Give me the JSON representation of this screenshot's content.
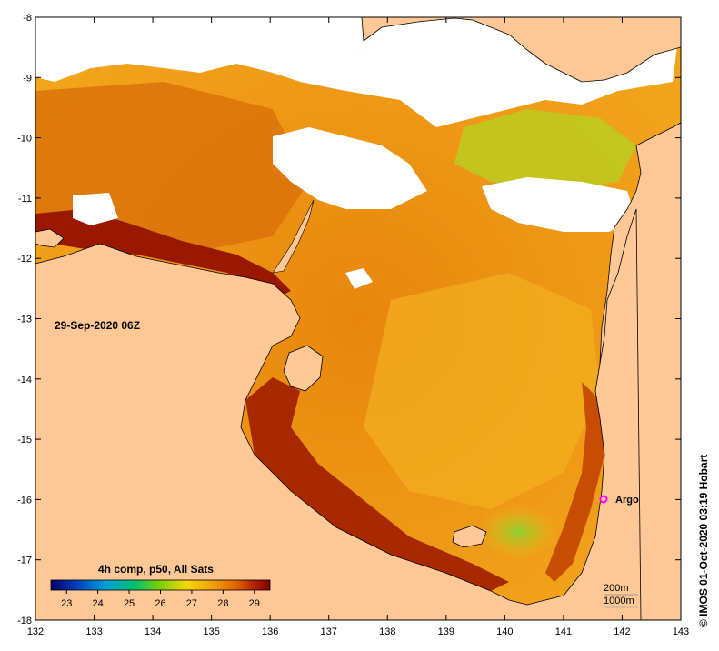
{
  "map": {
    "date_label": "29-Sep-2020 06Z",
    "credit": "© IMOS 01-Oct-2020 03:19 Hobart",
    "x_ticks": [
      "132",
      "133",
      "134",
      "135",
      "136",
      "137",
      "138",
      "139",
      "140",
      "141",
      "142",
      "143"
    ],
    "y_ticks": [
      "-8",
      "-9",
      "-10",
      "-11",
      "-12",
      "-13",
      "-14",
      "-15",
      "-16",
      "-17",
      "-18"
    ],
    "lon_range": [
      132,
      143
    ],
    "lat_range": [
      -18,
      -8
    ],
    "colorbar": {
      "title": "4h comp, p50, All Sats",
      "labels": [
        "23",
        "24",
        "25",
        "26",
        "27",
        "28",
        "29"
      ],
      "range": [
        22.5,
        29.5
      ],
      "colors": [
        "#08006a",
        "#0040c0",
        "#00a0d8",
        "#00c070",
        "#80d000",
        "#f8d800",
        "#f0a000",
        "#e06000",
        "#b02000",
        "#800000"
      ]
    },
    "marker": {
      "label": "Argo",
      "lon": 141.7,
      "lat": -16.0,
      "color": "#ff00ff"
    },
    "contours": {
      "line1": "200m",
      "line2": "1000m"
    },
    "colors": {
      "land": "#fdc896",
      "nodata": "#ffffff",
      "sea_warm": "#e88a10",
      "sea_hot": "#b83000",
      "sea_mild": "#f3b020",
      "sea_cool": "#9ad020"
    }
  }
}
